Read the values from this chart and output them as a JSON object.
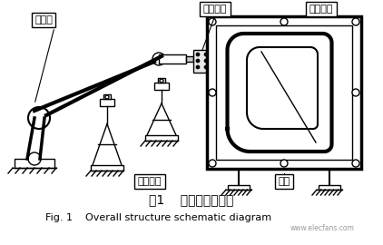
{
  "title_cn": "图1    整体结构示意图",
  "title_en": "Fig. 1    Overall structure schematic diagram",
  "bg_color": "#ffffff",
  "line_color": "#000000",
  "label_robot": "机器人",
  "label_scanner": "扫描测头",
  "label_workpiece": "被测工件",
  "label_tracking": "跟踪系统",
  "label_fixture": "夹具",
  "website": "www.elecfans.com"
}
